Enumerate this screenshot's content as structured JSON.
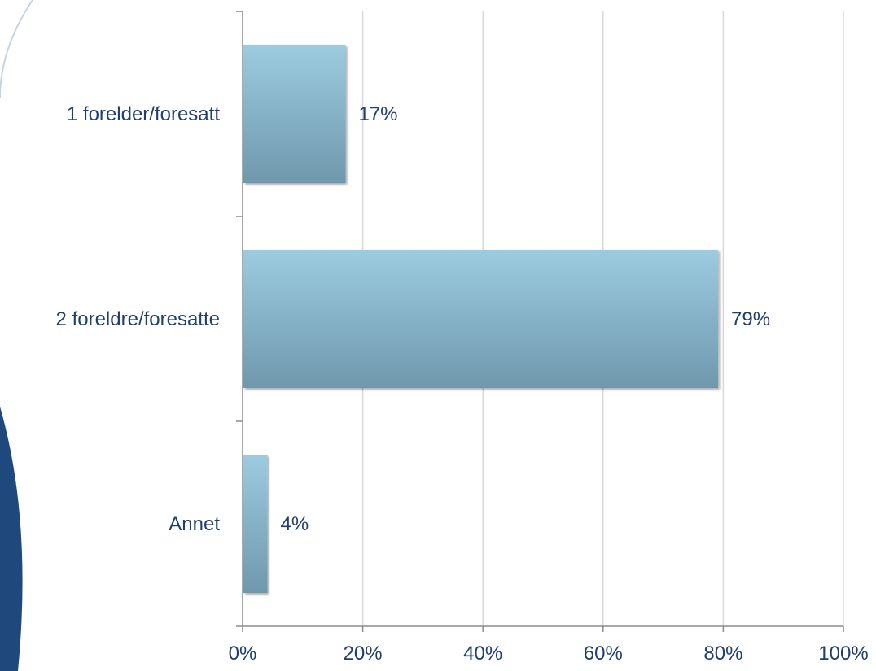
{
  "chart_data": {
    "type": "bar",
    "orientation": "horizontal",
    "categories": [
      "1 forelder/foresatt",
      "2 foreldre/foresatte",
      "Annet"
    ],
    "values": [
      17,
      79,
      4
    ],
    "data_labels": [
      "17%",
      "79%",
      "4%"
    ],
    "xlim": [
      0,
      100
    ],
    "xticks": [
      0,
      20,
      40,
      60,
      80,
      100
    ],
    "xtick_labels": [
      "0%",
      "20%",
      "40%",
      "60%",
      "80%",
      "100%"
    ],
    "title": "",
    "xlabel": "",
    "ylabel": "",
    "grid": "vertical",
    "legend": "none",
    "colors": {
      "bar_top": "#9ccbe0",
      "bar_bottom": "#6f98ad",
      "text": "#1f3f6e",
      "grid": "#d9d9d9",
      "axis": "#8c8c8c",
      "decor_dark": "#1f497d",
      "decor_light": "#c7d3e2"
    }
  }
}
